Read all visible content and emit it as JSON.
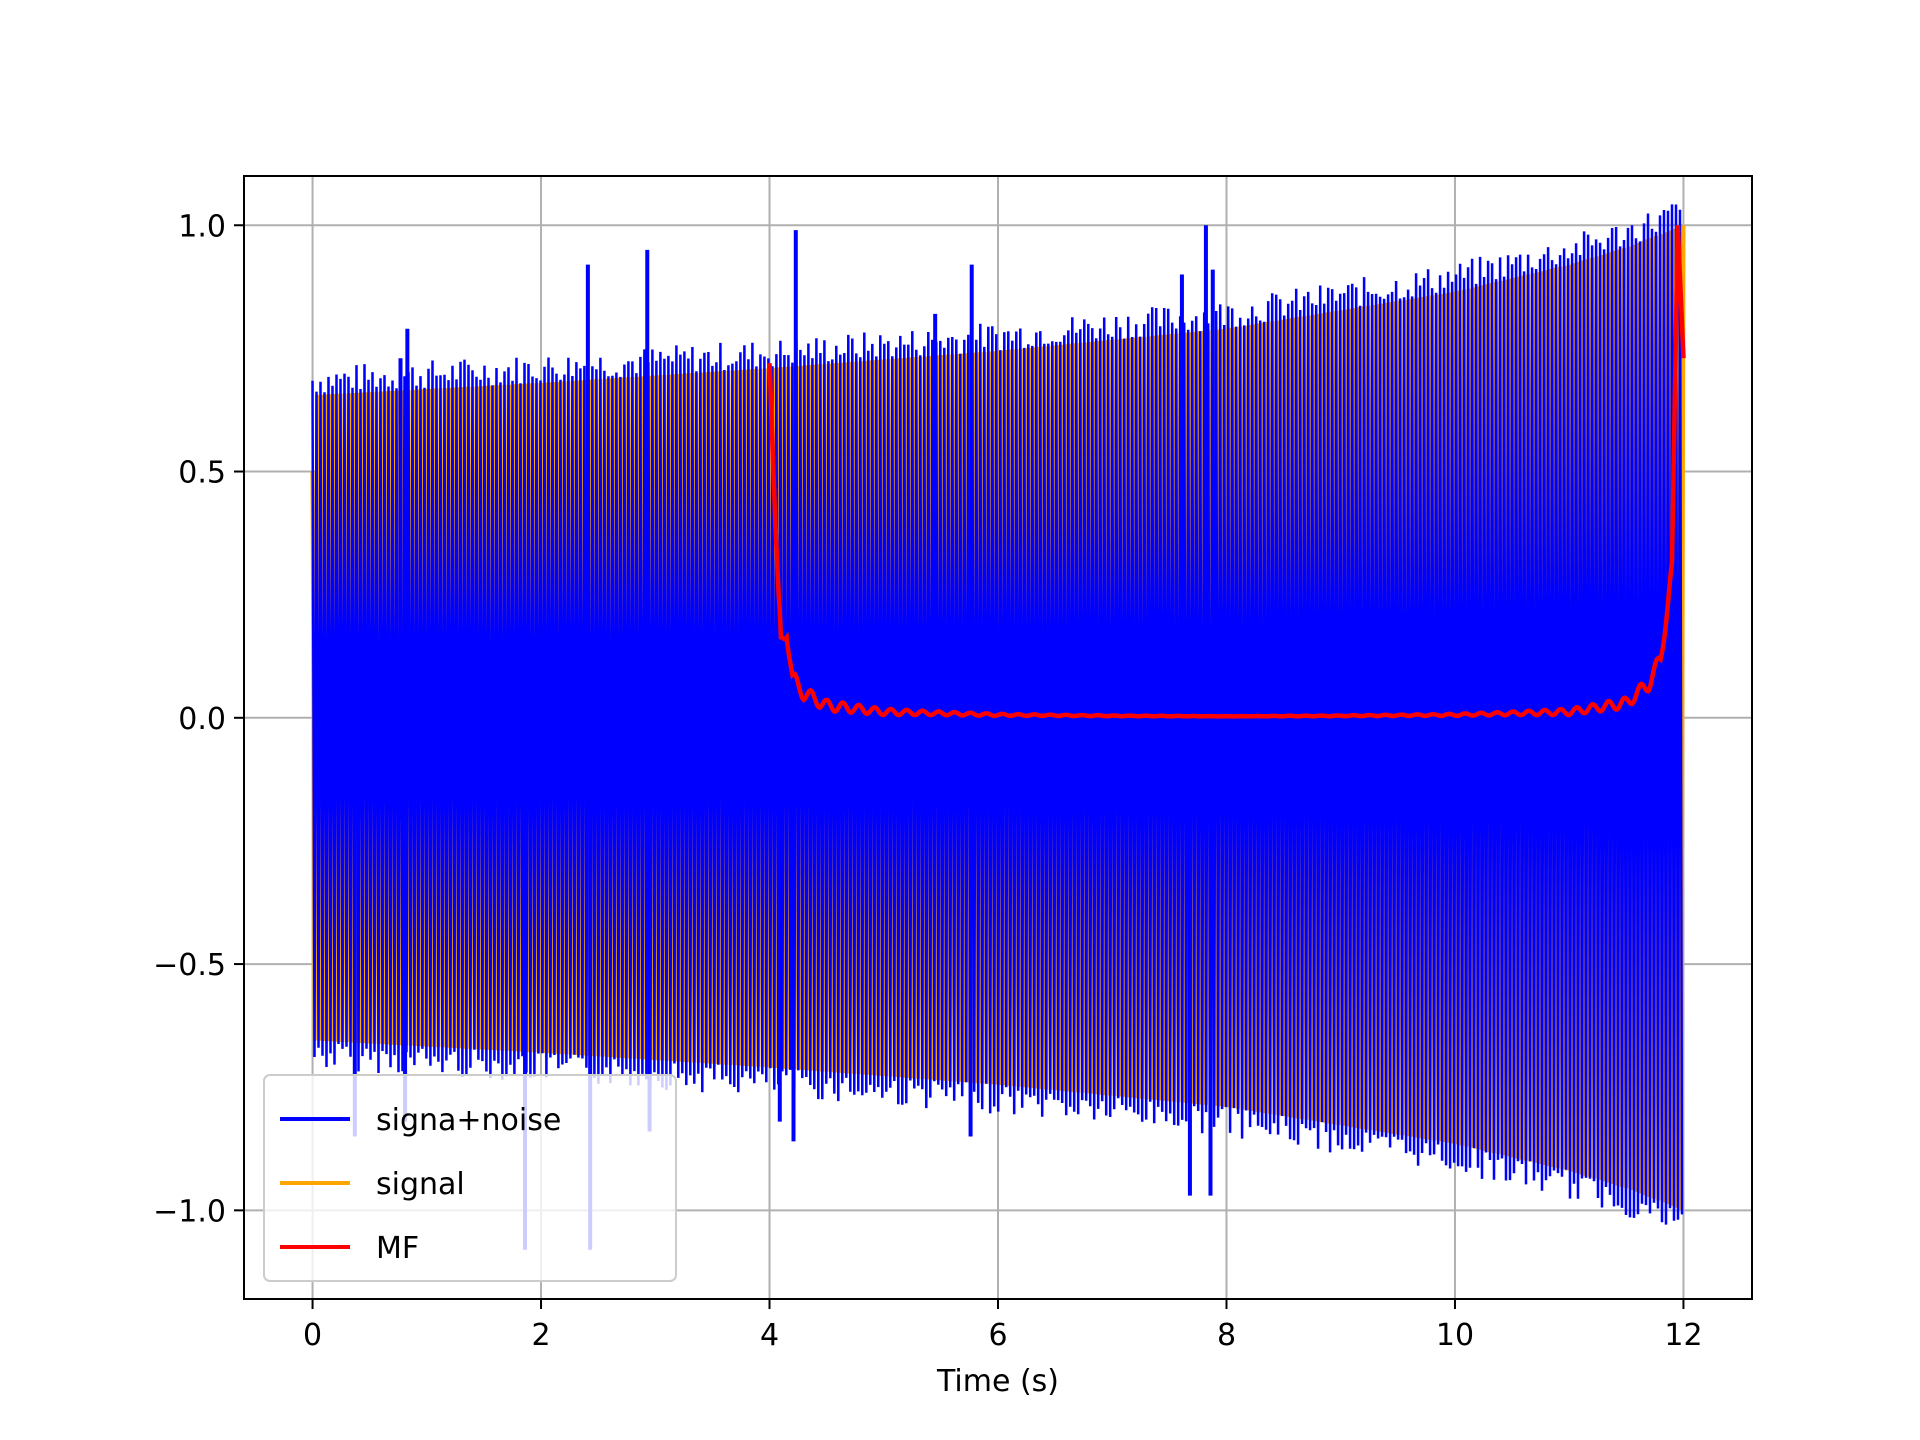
{
  "chart_data": {
    "type": "line",
    "title": "",
    "xlabel": "Time (s)",
    "ylabel": "",
    "xlim": [
      -0.6,
      12.6
    ],
    "ylim": [
      -1.18,
      1.1
    ],
    "xticks": [
      0,
      2,
      4,
      6,
      8,
      10,
      12
    ],
    "xtick_labels": [
      "0",
      "2",
      "4",
      "6",
      "8",
      "10",
      "12"
    ],
    "yticks": [
      -1.0,
      -0.5,
      0.0,
      0.5,
      1.0
    ],
    "ytick_labels": [
      "−1.0",
      "−0.5",
      "0.0",
      "0.5",
      "1.0"
    ],
    "grid": true,
    "legend_position": "lower-left",
    "colors": {
      "noise": "#0000ff",
      "signal": "#ffa500",
      "mf": "#ff0000"
    },
    "series": [
      {
        "name": "signa+noise",
        "color": "#0000ff",
        "description_points": {
          "x_range": [
            0,
            12
          ],
          "envelope_max_start": 0.66,
          "envelope_max_end": 1.0,
          "spikes": [
            {
              "x": 0.37,
              "y": -0.85
            },
            {
              "x": 0.77,
              "y": 0.73
            },
            {
              "x": 0.83,
              "y": 0.79
            },
            {
              "x": 0.81,
              "y": -0.82
            },
            {
              "x": 1.86,
              "y": -1.08
            },
            {
              "x": 2.41,
              "y": 0.92
            },
            {
              "x": 2.43,
              "y": -1.08
            },
            {
              "x": 2.93,
              "y": 0.95
            },
            {
              "x": 2.95,
              "y": -0.84
            },
            {
              "x": 4.09,
              "y": -0.82
            },
            {
              "x": 4.23,
              "y": 0.99
            },
            {
              "x": 4.21,
              "y": -0.86
            },
            {
              "x": 5.45,
              "y": 0.82
            },
            {
              "x": 5.77,
              "y": 0.92
            },
            {
              "x": 5.76,
              "y": -0.85
            },
            {
              "x": 7.61,
              "y": 0.9
            },
            {
              "x": 7.82,
              "y": 1.0
            },
            {
              "x": 7.88,
              "y": 0.91
            },
            {
              "x": 7.86,
              "y": -0.97
            },
            {
              "x": 7.68,
              "y": -0.97
            }
          ]
        }
      },
      {
        "name": "signal",
        "color": "#ffa500",
        "envelope": {
          "x": [
            0,
            2,
            4,
            6,
            8,
            10,
            11,
            11.5,
            12
          ],
          "amplitude": [
            0.655,
            0.68,
            0.71,
            0.745,
            0.79,
            0.865,
            0.92,
            0.955,
            1.0
          ]
        },
        "start_value": 0.5
      },
      {
        "name": "MF",
        "color": "#ff0000",
        "x": [
          4.0,
          4.05,
          4.1,
          4.15,
          4.2,
          4.3,
          4.5,
          5.0,
          6.0,
          7.0,
          8.0,
          9.0,
          10.0,
          11.0,
          11.5,
          11.7,
          11.8,
          11.9,
          11.95,
          12.0
        ],
        "y": [
          0.72,
          0.4,
          0.15,
          0.18,
          0.08,
          0.05,
          0.025,
          0.012,
          0.006,
          0.004,
          0.003,
          0.004,
          0.006,
          0.012,
          0.03,
          0.07,
          0.12,
          0.3,
          1.0,
          0.73
        ]
      }
    ]
  }
}
